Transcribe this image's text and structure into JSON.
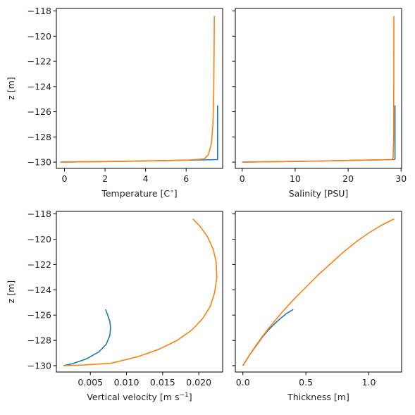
{
  "chart_data": [
    {
      "type": "line",
      "id": "temperature",
      "xlabel": "Temperature [C$^\\circ$]",
      "xlabel_parts": [
        "Temperature [C",
        "∘",
        "]"
      ],
      "ylabel": "z [m]",
      "xlim": [
        -0.4,
        7.8
      ],
      "ylim": [
        -130.5,
        -117.8
      ],
      "xticks": [
        0,
        2,
        4,
        6
      ],
      "xtick_labels": [
        "0",
        "2",
        "4",
        "6"
      ],
      "yticks": [
        -130,
        -128,
        -126,
        -124,
        -122,
        -120,
        -118
      ],
      "ytick_labels": [
        "−130",
        "−128",
        "−126",
        "−124",
        "−122",
        "−120",
        "−118"
      ],
      "series": [
        {
          "color": "#1f77b4",
          "points": [
            [
              -0.2,
              -130.0
            ],
            [
              3.0,
              -129.94
            ],
            [
              6.0,
              -129.85
            ],
            [
              7.55,
              -129.8
            ],
            [
              7.55,
              -129.7
            ],
            [
              7.55,
              -125.5
            ]
          ]
        },
        {
          "color": "#ff7f0e",
          "points": [
            [
              -0.2,
              -130.0
            ],
            [
              2.0,
              -129.95
            ],
            [
              4.0,
              -129.9
            ],
            [
              6.0,
              -129.85
            ],
            [
              6.9,
              -129.75
            ],
            [
              7.1,
              -129.4
            ],
            [
              7.25,
              -128.5
            ],
            [
              7.32,
              -127.0
            ],
            [
              7.36,
              -124.5
            ],
            [
              7.38,
              -121.0
            ],
            [
              7.39,
              -118.4
            ]
          ]
        }
      ]
    },
    {
      "type": "line",
      "id": "salinity",
      "xlabel": "Salinity [PSU]",
      "ylabel": "",
      "xlim": [
        -1.3,
        30.1
      ],
      "ylim": [
        -130.5,
        -117.8
      ],
      "xticks": [
        0,
        10,
        20,
        30
      ],
      "xtick_labels": [
        "0",
        "10",
        "20",
        "30"
      ],
      "yticks": [
        -130,
        -128,
        -126,
        -124,
        -122,
        -120,
        -118
      ],
      "ytick_labels": [
        "",
        "",
        "",
        "",
        "",
        "",
        ""
      ],
      "series": [
        {
          "color": "#1f77b4",
          "points": [
            [
              0.0,
              -130.0
            ],
            [
              14.0,
              -129.92
            ],
            [
              28.6,
              -129.8
            ],
            [
              28.85,
              -129.75
            ],
            [
              28.85,
              -125.5
            ]
          ]
        },
        {
          "color": "#ff7f0e",
          "points": [
            [
              0.0,
              -130.0
            ],
            [
              14.0,
              -129.92
            ],
            [
              28.3,
              -129.8
            ],
            [
              28.5,
              -129.6
            ],
            [
              28.6,
              -128.0
            ],
            [
              28.62,
              -124.0
            ],
            [
              28.64,
              -118.4
            ]
          ]
        }
      ]
    },
    {
      "type": "line",
      "id": "vertical_velocity",
      "xlabel": "Vertical velocity [m s$^{-1}$]",
      "xlabel_parts": [
        "Vertical velocity [m s",
        "−1",
        "]"
      ],
      "ylabel": "z [m]",
      "xlim": [
        0.0003,
        0.0233
      ],
      "ylim": [
        -130.5,
        -117.8
      ],
      "xticks": [
        0.005,
        0.01,
        0.015,
        0.02
      ],
      "xtick_labels": [
        "0.005",
        "0.010",
        "0.015",
        "0.020"
      ],
      "yticks": [
        -130,
        -128,
        -126,
        -124,
        -122,
        -120,
        -118
      ],
      "ytick_labels": [
        "−130",
        "−128",
        "−126",
        "−124",
        "−122",
        "−120",
        "−118"
      ],
      "series": [
        {
          "color": "#1f77b4",
          "points": [
            [
              0.0013,
              -130.0
            ],
            [
              0.0025,
              -129.85
            ],
            [
              0.0045,
              -129.45
            ],
            [
              0.0062,
              -128.9
            ],
            [
              0.0072,
              -128.3
            ],
            [
              0.0077,
              -127.6
            ],
            [
              0.0078,
              -127.0
            ],
            [
              0.0077,
              -126.5
            ],
            [
              0.0074,
              -126.0
            ],
            [
              0.0071,
              -125.55
            ]
          ]
        },
        {
          "color": "#ff7f0e",
          "points": [
            [
              0.0013,
              -130.0
            ],
            [
              0.004,
              -129.95
            ],
            [
              0.0079,
              -129.8
            ],
            [
              0.0115,
              -129.3
            ],
            [
              0.0145,
              -128.7
            ],
            [
              0.017,
              -128.0
            ],
            [
              0.019,
              -127.2
            ],
            [
              0.0205,
              -126.3
            ],
            [
              0.0216,
              -125.3
            ],
            [
              0.0222,
              -124.2
            ],
            [
              0.0225,
              -123.0
            ],
            [
              0.0224,
              -121.8
            ],
            [
              0.022,
              -120.8
            ],
            [
              0.0212,
              -119.8
            ],
            [
              0.0202,
              -119.0
            ],
            [
              0.0192,
              -118.4
            ]
          ]
        }
      ]
    },
    {
      "type": "line",
      "id": "thickness",
      "xlabel": "Thickness [m]",
      "ylabel": "",
      "xlim": [
        -0.06,
        1.26
      ],
      "ylim": [
        -130.5,
        -117.8
      ],
      "xticks": [
        0.0,
        0.5,
        1.0
      ],
      "xtick_labels": [
        "0.0",
        "0.5",
        "1.0"
      ],
      "yticks": [
        -130,
        -128,
        -126,
        -124,
        -122,
        -120,
        -118
      ],
      "ytick_labels": [
        "",
        "",
        "",
        "",
        "",
        "",
        ""
      ],
      "series": [
        {
          "color": "#1f77b4",
          "points": [
            [
              0.0,
              -130.0
            ],
            [
              0.05,
              -129.2
            ],
            [
              0.1,
              -128.5
            ],
            [
              0.15,
              -127.8
            ],
            [
              0.2,
              -127.2
            ],
            [
              0.25,
              -126.7
            ],
            [
              0.3,
              -126.25
            ],
            [
              0.35,
              -125.85
            ],
            [
              0.4,
              -125.55
            ]
          ]
        },
        {
          "color": "#ff7f0e",
          "points": [
            [
              0.0,
              -130.0
            ],
            [
              0.05,
              -129.2
            ],
            [
              0.1,
              -128.45
            ],
            [
              0.15,
              -127.75
            ],
            [
              0.2,
              -127.1
            ],
            [
              0.3,
              -125.9
            ],
            [
              0.4,
              -124.8
            ],
            [
              0.5,
              -123.8
            ],
            [
              0.6,
              -122.8
            ],
            [
              0.7,
              -121.9
            ],
            [
              0.8,
              -121.0
            ],
            [
              0.9,
              -120.2
            ],
            [
              1.0,
              -119.5
            ],
            [
              1.1,
              -118.9
            ],
            [
              1.2,
              -118.4
            ]
          ]
        }
      ]
    }
  ]
}
